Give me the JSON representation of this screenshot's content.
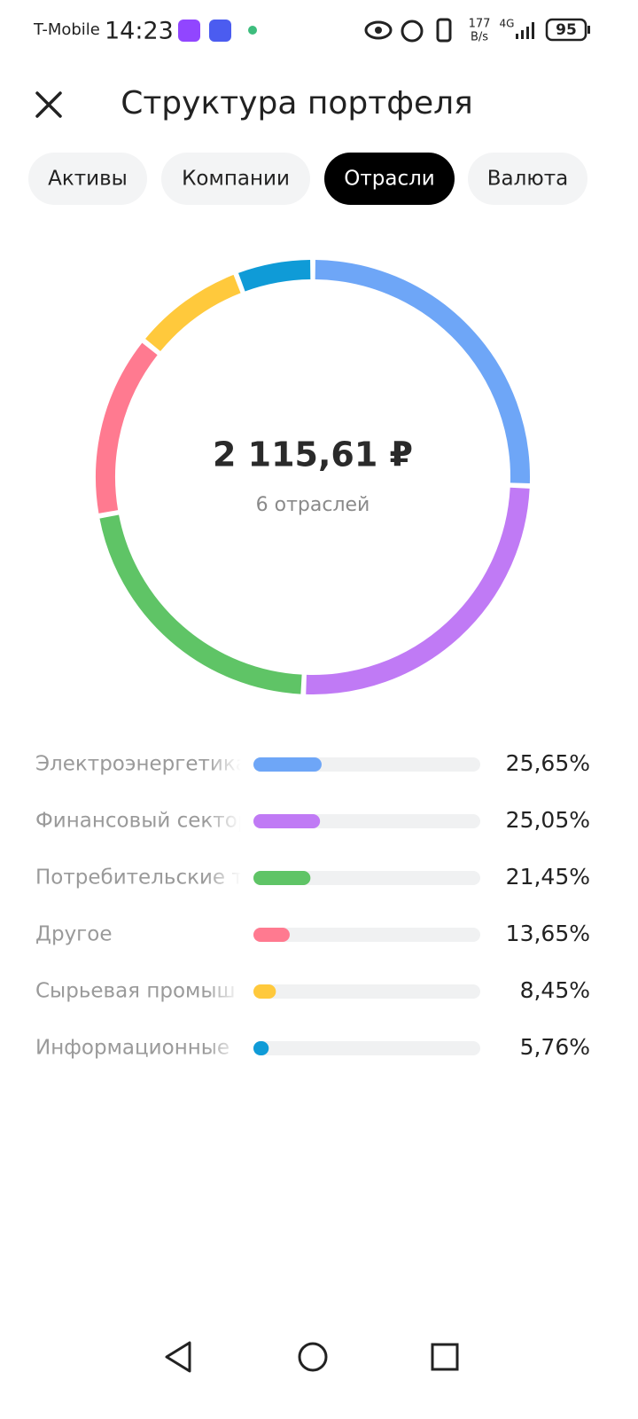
{
  "status_bar": {
    "carrier": "T-Mobile",
    "time": "14:23",
    "net_speed_value": "177",
    "net_speed_unit": "B/s",
    "network": "4G",
    "battery": "95"
  },
  "header": {
    "title": "Структура портфеля"
  },
  "tabs": {
    "items": [
      "Активы",
      "Компании",
      "Отрасли",
      "Валюта"
    ],
    "active": 2
  },
  "chart_data": {
    "type": "donut",
    "center_value": "2 115,61 ₽",
    "center_caption": "6 отраслей",
    "categories": [
      "Электроэнергетика",
      "Финансовый сектор",
      "Потребительские т",
      "Другое",
      "Сырьевая промыш",
      "Информационные"
    ],
    "values": [
      25.65,
      25.05,
      21.45,
      13.65,
      8.45,
      5.76
    ],
    "value_labels": [
      "25,65%",
      "25,05%",
      "21,45%",
      "13,65%",
      "8,45%",
      "5,76%"
    ],
    "colors": [
      "#6ea6f7",
      "#c07af5",
      "#5fc466",
      "#ff7a90",
      "#ffc93c",
      "#0f9bd7"
    ]
  }
}
